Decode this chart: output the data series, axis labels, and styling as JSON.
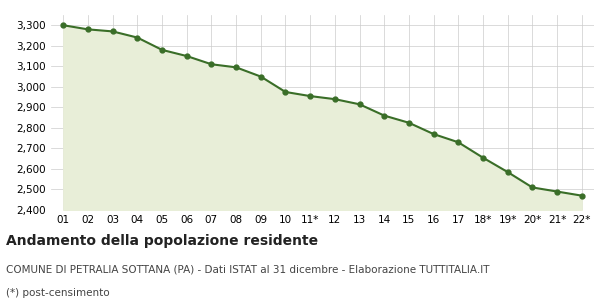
{
  "x_labels": [
    "01",
    "02",
    "03",
    "04",
    "05",
    "06",
    "07",
    "08",
    "09",
    "10",
    "11*",
    "12",
    "13",
    "14",
    "15",
    "16",
    "17",
    "18*",
    "19*",
    "20*",
    "21*",
    "22*"
  ],
  "y_values": [
    3300,
    3280,
    3270,
    3240,
    3180,
    3150,
    3110,
    3095,
    3050,
    2975,
    2955,
    2940,
    2915,
    2860,
    2825,
    2770,
    2730,
    2655,
    2585,
    2510,
    2490,
    2470
  ],
  "line_color": "#3a6e28",
  "fill_color": "#e8eed8",
  "marker": "o",
  "marker_size": 3.5,
  "line_width": 1.5,
  "ylim": [
    2400,
    3350
  ],
  "yticks": [
    2400,
    2500,
    2600,
    2700,
    2800,
    2900,
    3000,
    3100,
    3200,
    3300
  ],
  "background_color": "#ffffff",
  "plot_bg_color": "#ffffff",
  "grid_color": "#cccccc",
  "title": "Andamento della popolazione residente",
  "subtitle": "COMUNE DI PETRALIA SOTTANA (PA) - Dati ISTAT al 31 dicembre - Elaborazione TUTTITALIA.IT",
  "footnote": "(*) post-censimento",
  "title_fontsize": 10,
  "subtitle_fontsize": 7.5,
  "footnote_fontsize": 7.5,
  "tick_fontsize": 7.5
}
